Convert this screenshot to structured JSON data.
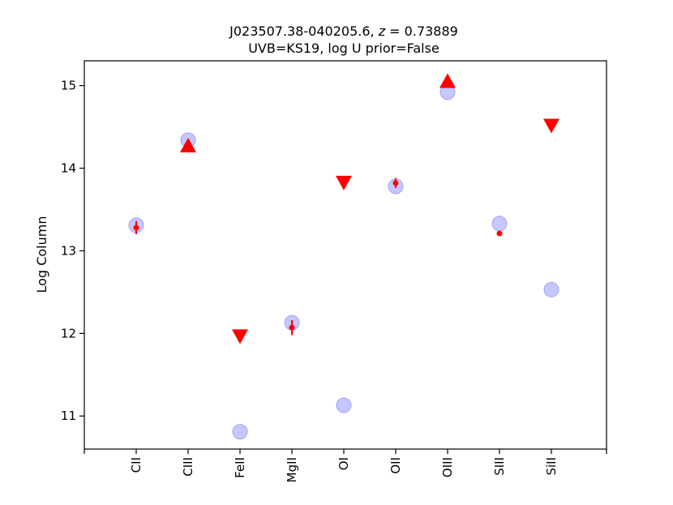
{
  "chart_data": {
    "type": "scatter",
    "title_line1": "J023507.38-040205.6, z = 0.73889",
    "title_line2": "UVB=KS19, log U prior=False",
    "xlabel": "",
    "ylabel": "Log Column",
    "categories": [
      "CII",
      "CIII",
      "FeII",
      "MgII",
      "OI",
      "OII",
      "OIII",
      "SIII",
      "SiII"
    ],
    "y_ticks": [
      11,
      12,
      13,
      14,
      15
    ],
    "ylim": [
      10.6,
      15.3
    ],
    "grid": false,
    "colors": {
      "model": "#9999ff",
      "observed": "#ff0000"
    },
    "model_points": [
      {
        "ion": "CII",
        "y": 13.31
      },
      {
        "ion": "CIII",
        "y": 14.34
      },
      {
        "ion": "FeII",
        "y": 10.81
      },
      {
        "ion": "MgII",
        "y": 12.13
      },
      {
        "ion": "OI",
        "y": 11.13
      },
      {
        "ion": "OII",
        "y": 13.78
      },
      {
        "ion": "OIII",
        "y": 14.92
      },
      {
        "ion": "SIII",
        "y": 13.33
      },
      {
        "ion": "SiII",
        "y": 12.53
      }
    ],
    "detections": [
      {
        "ion": "CII",
        "y": 13.28,
        "err": 0.08
      },
      {
        "ion": "MgII",
        "y": 12.07,
        "err": 0.09
      },
      {
        "ion": "OII",
        "y": 13.82,
        "err": 0.06
      },
      {
        "ion": "SIII",
        "y": 13.21,
        "err": 0.0
      }
    ],
    "lower_limits": [
      {
        "ion": "CIII",
        "y": 14.27
      },
      {
        "ion": "OIII",
        "y": 15.05
      }
    ],
    "upper_limits": [
      {
        "ion": "FeII",
        "y": 11.97
      },
      {
        "ion": "OI",
        "y": 13.83
      },
      {
        "ion": "SiII",
        "y": 14.52
      }
    ]
  }
}
